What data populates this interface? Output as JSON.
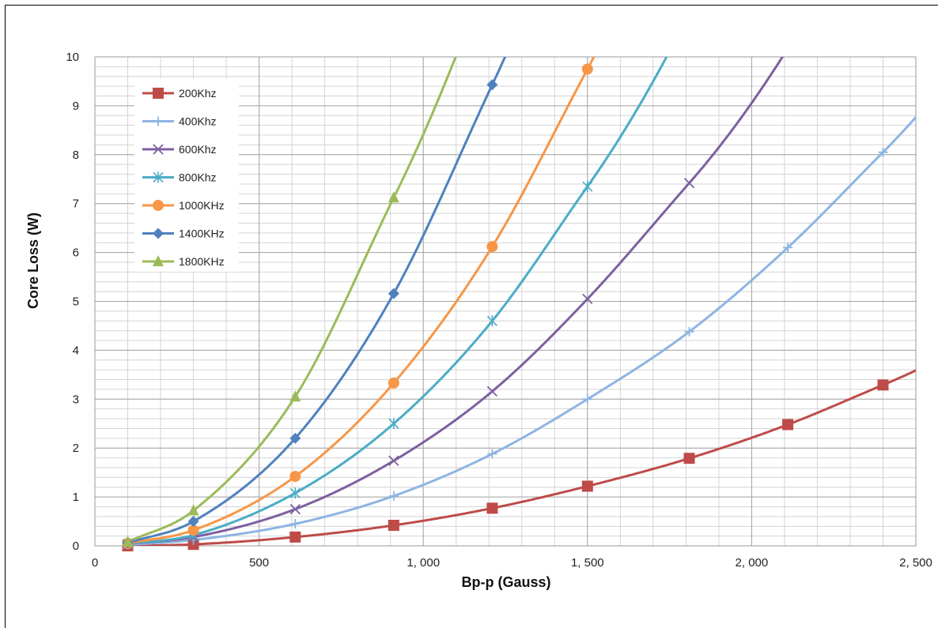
{
  "chart_data": {
    "type": "line",
    "title": "",
    "xlabel": "Bp-p (Gauss)",
    "ylabel": "Core Loss (W)",
    "xlim": [
      0,
      2500
    ],
    "ylim": [
      0,
      10
    ],
    "x_ticks": [
      "0",
      "500",
      "1, 000",
      "1, 500",
      "2, 000",
      "2, 500"
    ],
    "x_tick_values": [
      0,
      500,
      1000,
      1500,
      2000,
      2500
    ],
    "y_ticks": [
      "0",
      "1",
      "2",
      "3",
      "4",
      "5",
      "6",
      "7",
      "8",
      "9",
      "10"
    ],
    "y_tick_values": [
      0,
      1,
      2,
      3,
      4,
      5,
      6,
      7,
      8,
      9,
      10
    ],
    "grid": true,
    "legend_position": "top-left",
    "series": [
      {
        "name": "200Khz",
        "color": "#be4b48",
        "marker": "square",
        "points": [
          [
            100,
            0.0
          ],
          [
            300,
            0.03
          ],
          [
            610,
            0.18
          ],
          [
            910,
            0.42
          ],
          [
            1210,
            0.77
          ],
          [
            1500,
            1.22
          ],
          [
            1810,
            1.79
          ],
          [
            2110,
            2.48
          ],
          [
            2400,
            3.29
          ]
        ]
      },
      {
        "name": "400Khz",
        "color": "#8eb4e3",
        "marker": "plus",
        "points": [
          [
            100,
            0.02
          ],
          [
            300,
            0.12
          ],
          [
            610,
            0.45
          ],
          [
            910,
            1.02
          ],
          [
            1210,
            1.88
          ],
          [
            1500,
            3.0
          ],
          [
            1810,
            4.38
          ],
          [
            2110,
            6.1
          ],
          [
            2400,
            8.05
          ]
        ]
      },
      {
        "name": "600Khz",
        "color": "#7d60a0",
        "marker": "x",
        "points": [
          [
            100,
            0.04
          ],
          [
            300,
            0.18
          ],
          [
            610,
            0.75
          ],
          [
            910,
            1.74
          ],
          [
            1210,
            3.16
          ],
          [
            1500,
            5.05
          ],
          [
            1810,
            7.42
          ]
        ]
      },
      {
        "name": "800Khz",
        "color": "#4bacc6",
        "marker": "star",
        "points": [
          [
            100,
            0.04
          ],
          [
            300,
            0.22
          ],
          [
            610,
            1.08
          ],
          [
            910,
            2.5
          ],
          [
            1210,
            4.6
          ],
          [
            1500,
            7.35
          ]
        ]
      },
      {
        "name": "1000KHz",
        "color": "#f79646",
        "marker": "circle",
        "points": [
          [
            100,
            0.05
          ],
          [
            300,
            0.32
          ],
          [
            610,
            1.42
          ],
          [
            910,
            3.33
          ],
          [
            1210,
            6.12
          ],
          [
            1500,
            9.75
          ]
        ]
      },
      {
        "name": "1400KHz",
        "color": "#4f81bd",
        "marker": "diamond",
        "points": [
          [
            100,
            0.06
          ],
          [
            300,
            0.5
          ],
          [
            610,
            2.2
          ],
          [
            910,
            5.16
          ],
          [
            1210,
            9.43
          ]
        ]
      },
      {
        "name": "1800KHz",
        "color": "#9bbb59",
        "marker": "triangle",
        "points": [
          [
            100,
            0.08
          ],
          [
            300,
            0.72
          ],
          [
            610,
            3.05
          ],
          [
            910,
            7.12
          ]
        ]
      }
    ]
  }
}
